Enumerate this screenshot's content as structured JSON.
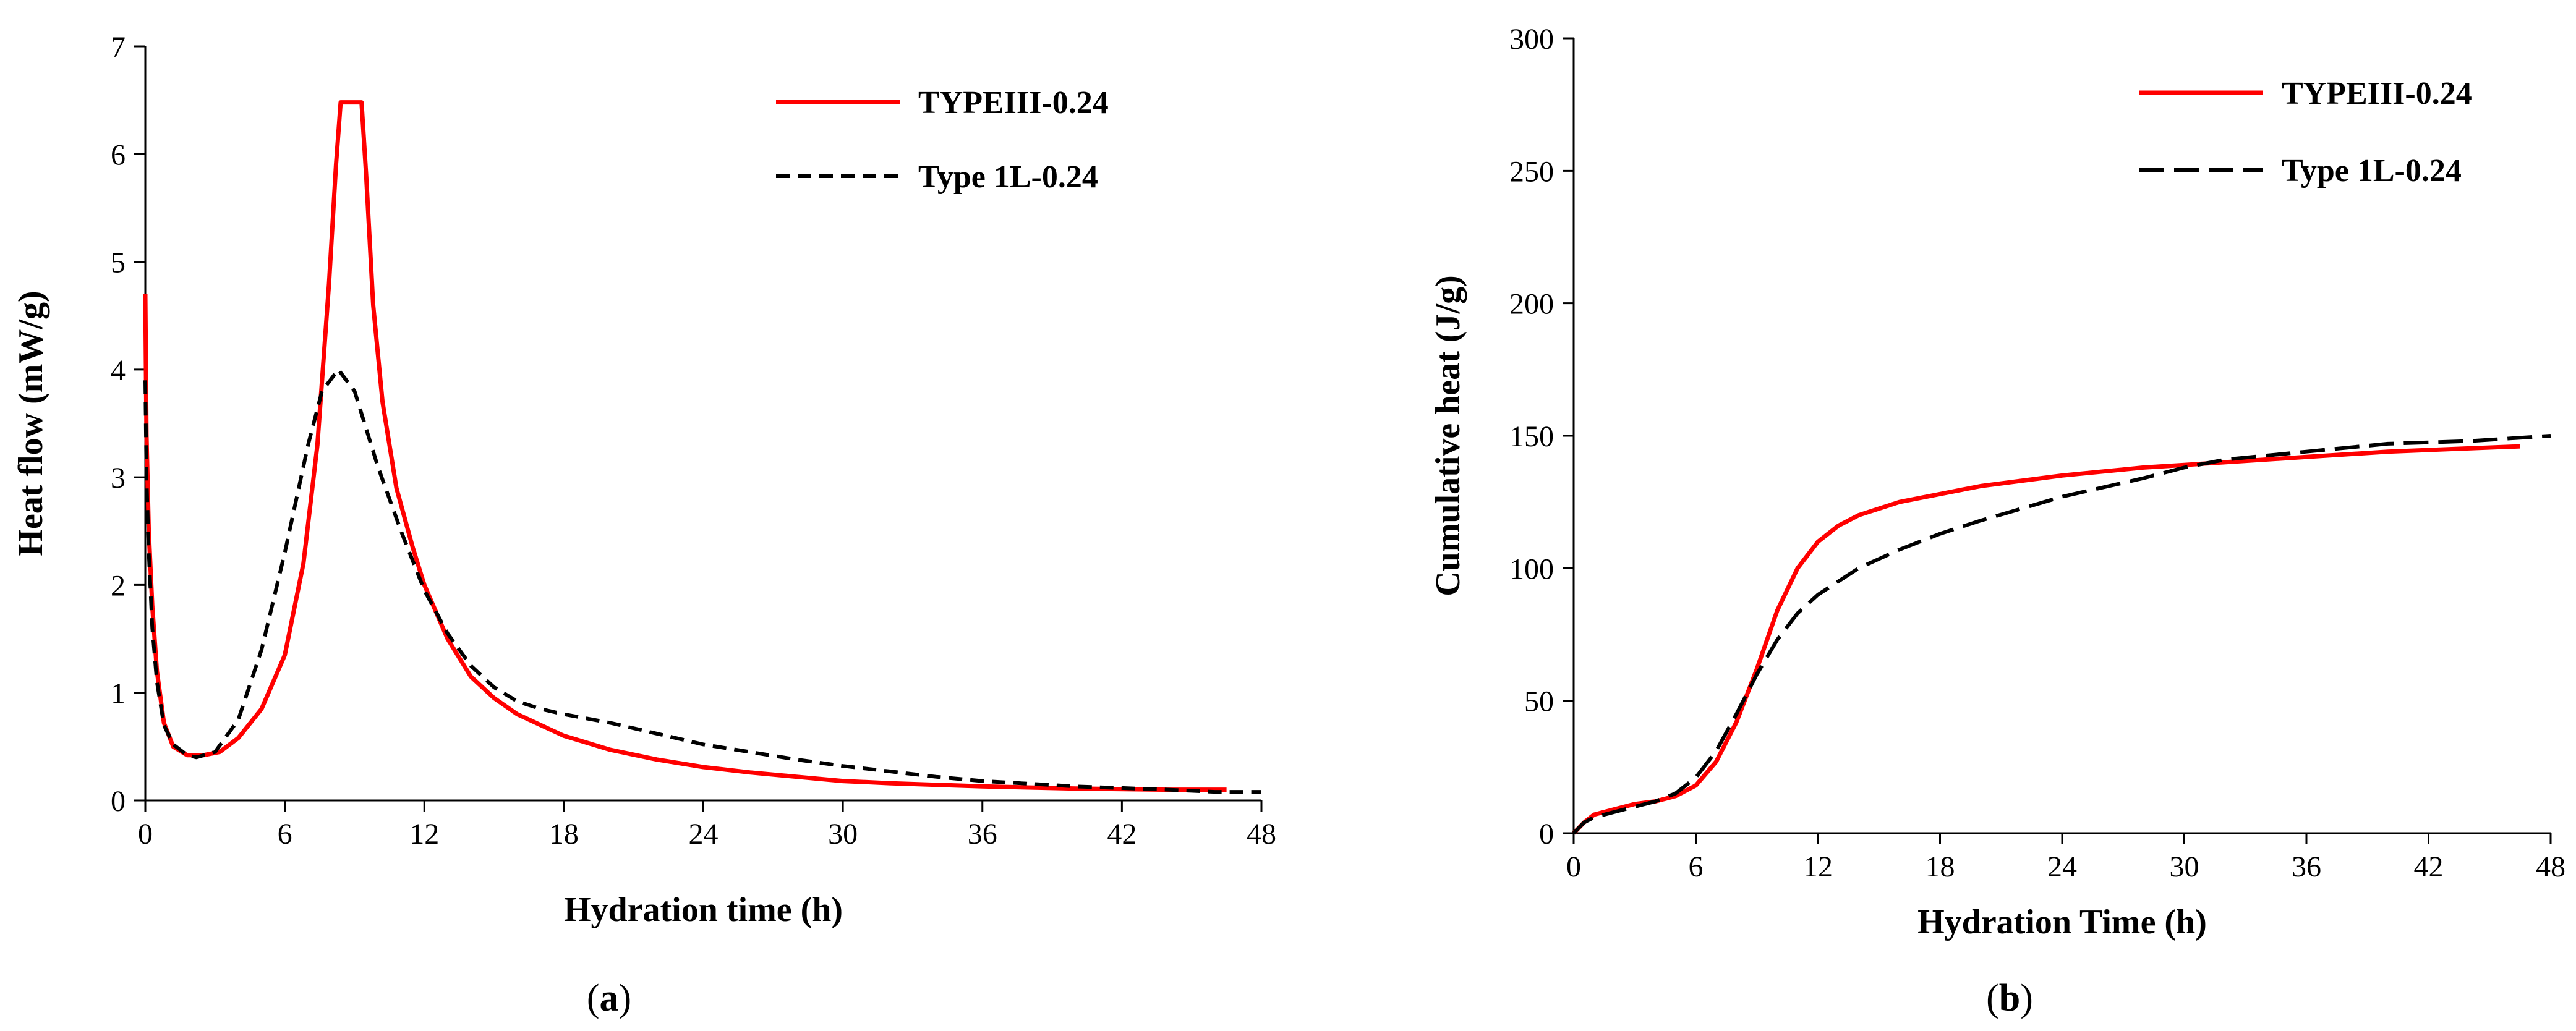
{
  "colors": {
    "typeIII": "#ff0000",
    "type1L": "#000000",
    "axis": "#000000",
    "background": "#ffffff"
  },
  "chart_data": [
    {
      "type": "line",
      "panel": "a",
      "caption": {
        "open": "(",
        "letter": "a",
        "close": ")"
      },
      "title": "",
      "xlabel": "Hydration time (h)",
      "ylabel": "Heat flow (mW/g)",
      "xlim": [
        0,
        48
      ],
      "ylim": [
        0,
        7
      ],
      "xticks": [
        0,
        6,
        12,
        18,
        24,
        30,
        36,
        42,
        48
      ],
      "yticks": [
        0,
        1,
        2,
        3,
        4,
        5,
        6,
        7
      ],
      "grid": false,
      "legend_position": "top-right",
      "series": [
        {
          "name": "TYPEIII-0.24",
          "style": "solid",
          "color": "#ff0000",
          "x": [
            0,
            0.05,
            0.15,
            0.3,
            0.5,
            0.8,
            1.2,
            1.8,
            2.5,
            3.2,
            4.0,
            5.0,
            6.0,
            6.8,
            7.4,
            7.9,
            8.2,
            8.4,
            9.3,
            9.5,
            9.8,
            10.2,
            10.8,
            11.5,
            12.0,
            13.0,
            14.0,
            15.0,
            16.0,
            18.0,
            20.0,
            22.0,
            24.0,
            26.0,
            28.0,
            30.0,
            32.0,
            36.0,
            40.0,
            44.0,
            46.5
          ],
          "y": [
            4.7,
            3.4,
            2.5,
            1.8,
            1.2,
            0.72,
            0.5,
            0.42,
            0.42,
            0.45,
            0.58,
            0.85,
            1.35,
            2.2,
            3.3,
            4.8,
            5.9,
            6.48,
            6.48,
            5.8,
            4.6,
            3.7,
            2.9,
            2.35,
            2.0,
            1.5,
            1.15,
            0.95,
            0.8,
            0.6,
            0.47,
            0.38,
            0.31,
            0.26,
            0.22,
            0.18,
            0.16,
            0.13,
            0.11,
            0.1,
            0.1
          ]
        },
        {
          "name": "Type 1L-0.24",
          "style": "dashed",
          "color": "#000000",
          "x": [
            0,
            0.05,
            0.15,
            0.3,
            0.5,
            0.8,
            1.2,
            1.8,
            2.2,
            3.0,
            4.0,
            5.0,
            6.0,
            7.0,
            7.6,
            8.3,
            9.0,
            10.0,
            11.0,
            12.0,
            13.0,
            14.0,
            15.0,
            16.0,
            17.0,
            18.0,
            20.0,
            22.0,
            24.0,
            26.0,
            28.0,
            30.0,
            32.0,
            34.0,
            36.0,
            40.0,
            44.0,
            46.0,
            48.0
          ],
          "y": [
            3.9,
            3.0,
            2.3,
            1.6,
            1.1,
            0.7,
            0.52,
            0.42,
            0.4,
            0.45,
            0.75,
            1.4,
            2.3,
            3.3,
            3.8,
            4.0,
            3.8,
            3.1,
            2.5,
            1.95,
            1.55,
            1.25,
            1.05,
            0.92,
            0.85,
            0.8,
            0.72,
            0.62,
            0.52,
            0.45,
            0.38,
            0.32,
            0.27,
            0.22,
            0.18,
            0.13,
            0.1,
            0.08,
            0.08
          ]
        }
      ]
    },
    {
      "type": "line",
      "panel": "b",
      "caption": {
        "open": "(",
        "letter": "b",
        "close": ")"
      },
      "title": "",
      "xlabel": "Hydration Time (h)",
      "ylabel": "Cumulative heat (J/g)",
      "xlim": [
        0,
        48
      ],
      "ylim": [
        0,
        300
      ],
      "xticks": [
        0,
        6,
        12,
        18,
        24,
        30,
        36,
        42,
        48
      ],
      "yticks": [
        0,
        50,
        100,
        150,
        200,
        250,
        300
      ],
      "grid": false,
      "legend_position": "top-right",
      "series": [
        {
          "name": "TYPEIII-0.24",
          "style": "solid",
          "color": "#ff0000",
          "x": [
            0,
            0.5,
            1,
            2,
            3,
            4,
            5,
            6,
            7,
            8,
            9,
            10,
            11,
            12,
            13,
            14,
            16,
            18,
            20,
            24,
            28,
            30,
            36,
            40,
            46.5
          ],
          "y": [
            0,
            4,
            7,
            9,
            11,
            12,
            14,
            18,
            27,
            42,
            62,
            84,
            100,
            110,
            116,
            120,
            125,
            128,
            131,
            135,
            138,
            139,
            142,
            144,
            146
          ]
        },
        {
          "name": "Type 1L-0.24",
          "style": "dashed",
          "color": "#000000",
          "x": [
            0,
            0.5,
            1,
            2,
            3,
            4,
            5,
            6,
            7,
            8,
            9,
            10,
            11,
            12,
            14,
            16,
            18,
            20,
            24,
            28,
            30,
            32,
            36,
            40,
            44,
            48
          ],
          "y": [
            0,
            4,
            6,
            8,
            10,
            12,
            15,
            21,
            31,
            45,
            60,
            73,
            83,
            90,
            100,
            107,
            113,
            118,
            127,
            134,
            138,
            141,
            144,
            147,
            148,
            150
          ]
        }
      ]
    }
  ]
}
